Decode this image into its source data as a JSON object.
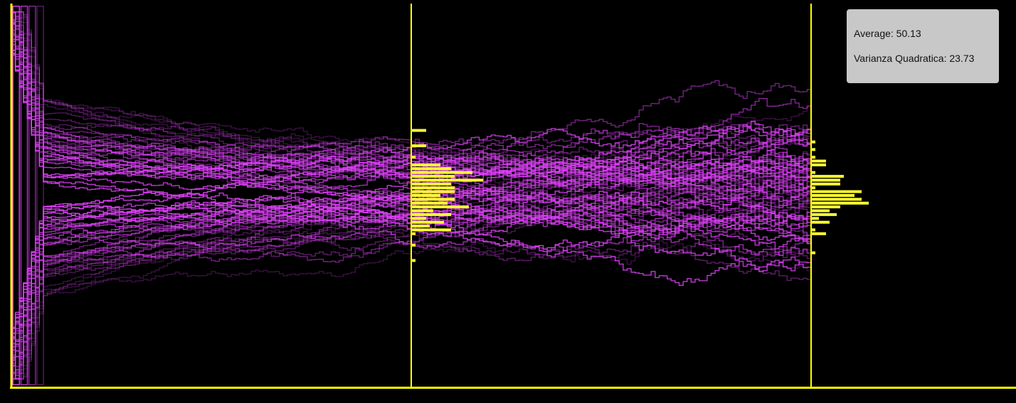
{
  "stats": {
    "average_label": "Average:",
    "average_value": "50.13",
    "variance_label": "Varianza Quadratica:",
    "variance_value": "23.73"
  },
  "colors": {
    "axis": "#ffff00",
    "paths": "#e040fb",
    "histogram": "#ffff33",
    "background": "#000000",
    "stats_bg": "#c8c8c8"
  },
  "chart_data": {
    "type": "random-walk-simulation-with-histograms",
    "n_paths": 80,
    "x_range": [
      0,
      200
    ],
    "y_range": [
      0,
      100
    ],
    "markers_x": [
      100,
      200
    ],
    "grid": false,
    "histograms": [
      {
        "at_x": 100,
        "bins": [
          {
            "y": 67,
            "count": 4
          },
          {
            "y": 63,
            "count": 4
          },
          {
            "y": 60,
            "count": 1
          },
          {
            "y": 58,
            "count": 8
          },
          {
            "y": 57,
            "count": 11
          },
          {
            "y": 56,
            "count": 17
          },
          {
            "y": 55,
            "count": 12
          },
          {
            "y": 54,
            "count": 20
          },
          {
            "y": 53,
            "count": 11
          },
          {
            "y": 52,
            "count": 12
          },
          {
            "y": 51,
            "count": 12
          },
          {
            "y": 50,
            "count": 8
          },
          {
            "y": 49,
            "count": 12
          },
          {
            "y": 48,
            "count": 10
          },
          {
            "y": 47,
            "count": 16
          },
          {
            "y": 46,
            "count": 6
          },
          {
            "y": 45,
            "count": 11
          },
          {
            "y": 44,
            "count": 4
          },
          {
            "y": 43,
            "count": 9
          },
          {
            "y": 42,
            "count": 5
          },
          {
            "y": 41,
            "count": 11
          },
          {
            "y": 40,
            "count": 1
          },
          {
            "y": 37,
            "count": 1
          },
          {
            "y": 33,
            "count": 1
          }
        ]
      },
      {
        "at_x": 200,
        "bins": [
          {
            "y": 64,
            "count": 1
          },
          {
            "y": 62,
            "count": 1
          },
          {
            "y": 60,
            "count": 1
          },
          {
            "y": 59,
            "count": 4
          },
          {
            "y": 58,
            "count": 4
          },
          {
            "y": 56,
            "count": 1
          },
          {
            "y": 55,
            "count": 9
          },
          {
            "y": 54,
            "count": 8
          },
          {
            "y": 53,
            "count": 8
          },
          {
            "y": 52,
            "count": 1
          },
          {
            "y": 51,
            "count": 14
          },
          {
            "y": 50,
            "count": 12
          },
          {
            "y": 49,
            "count": 14
          },
          {
            "y": 48,
            "count": 16
          },
          {
            "y": 47,
            "count": 8
          },
          {
            "y": 46,
            "count": 5
          },
          {
            "y": 45,
            "count": 7
          },
          {
            "y": 44,
            "count": 2
          },
          {
            "y": 43,
            "count": 5
          },
          {
            "y": 41,
            "count": 1
          },
          {
            "y": 40,
            "count": 4
          },
          {
            "y": 35,
            "count": 1
          }
        ]
      }
    ]
  }
}
